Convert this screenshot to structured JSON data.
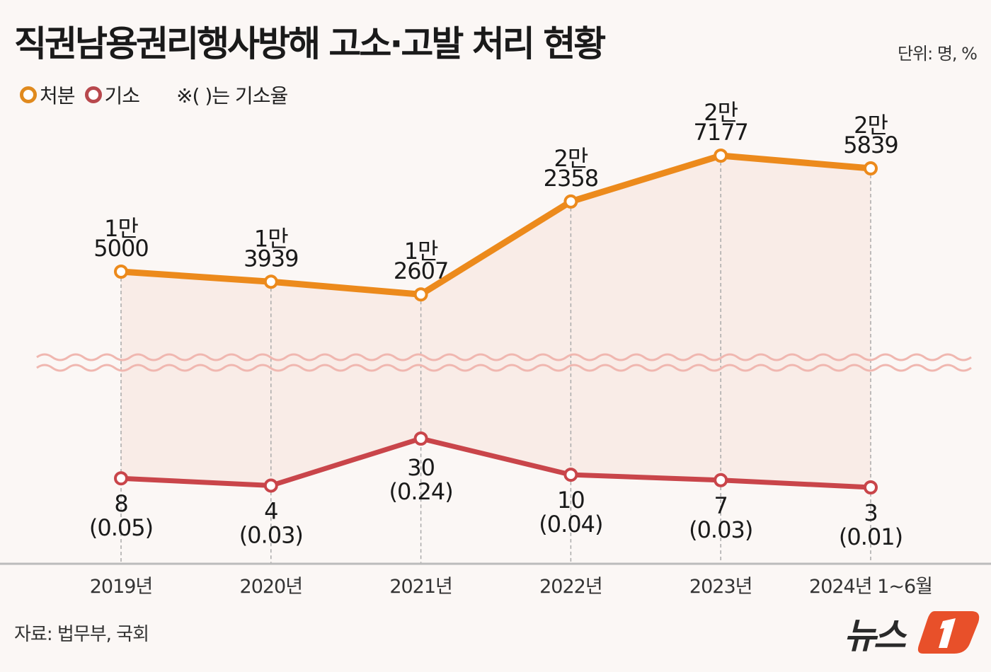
{
  "title": "직권남용권리행사방해 고소·고발 처리 현황",
  "unit": "단위: 명, %",
  "legend": {
    "series1": "처분",
    "series2": "기소",
    "note": "※( )는 기소율"
  },
  "source": "자료: 법무부, 국회",
  "logo_text": "뉴스1",
  "colors": {
    "처분": "#ec8a1c",
    "기소": "#c9454a",
    "background": "#fbf7f5",
    "fill": "#f9e9e4"
  },
  "chart_data": {
    "type": "line",
    "broken_axis": true,
    "categories": [
      "2019년",
      "2020년",
      "2021년",
      "2022년",
      "2023년",
      "2024년 1~6월"
    ],
    "series": [
      {
        "name": "처분",
        "values": [
          15000,
          13939,
          12607,
          22358,
          27177,
          25839
        ],
        "labels": [
          [
            "1만",
            "5000"
          ],
          [
            "1만",
            "3939"
          ],
          [
            "1만",
            "2607"
          ],
          [
            "2만",
            "2358"
          ],
          [
            "2만",
            "7177"
          ],
          [
            "2만",
            "5839"
          ]
        ]
      },
      {
        "name": "기소",
        "values": [
          8,
          4,
          30,
          10,
          7,
          3
        ],
        "labels": [
          [
            "8",
            "(0.05)"
          ],
          [
            "4",
            "(0.03)"
          ],
          [
            "30",
            "(0.24)"
          ],
          [
            "10",
            "(0.04)"
          ],
          [
            "7",
            "(0.03)"
          ],
          [
            "3",
            "(0.01)"
          ]
        ],
        "rates": [
          0.05,
          0.03,
          0.24,
          0.04,
          0.03,
          0.01
        ]
      }
    ],
    "grid": false,
    "legend_position": "top-left"
  }
}
